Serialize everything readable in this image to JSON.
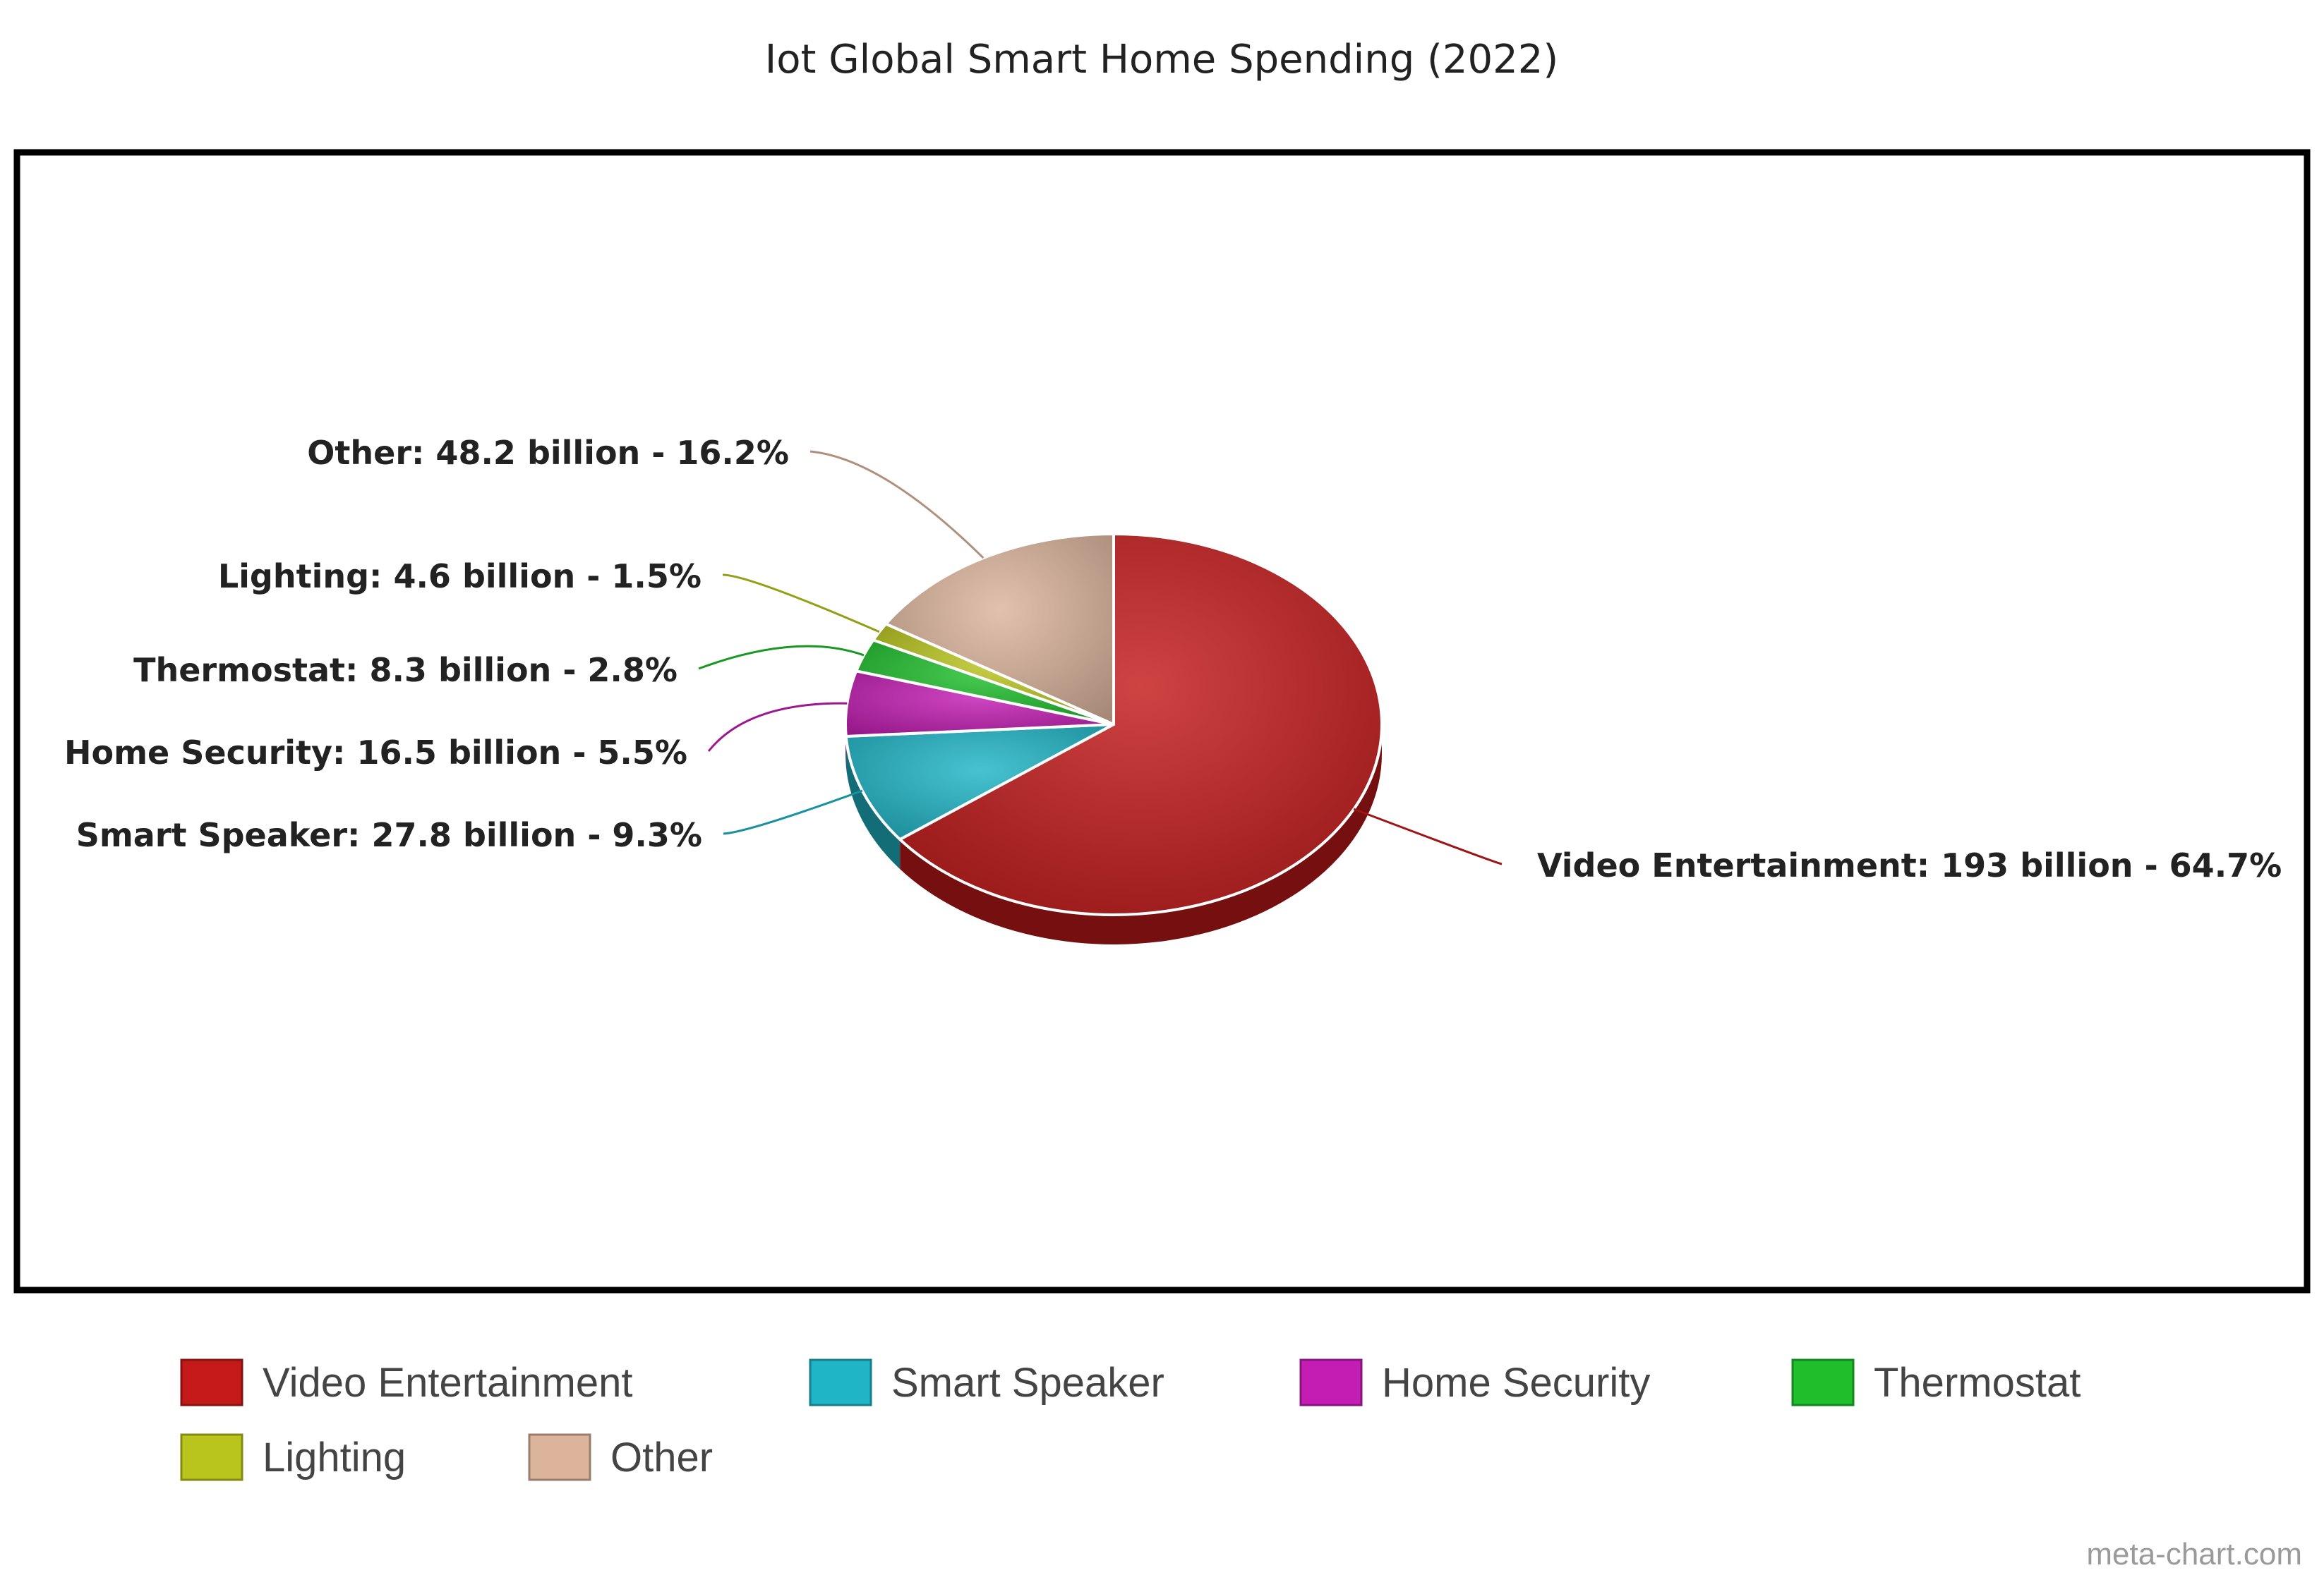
{
  "chart_data": {
    "type": "pie",
    "title": "Iot Global Smart Home Spending (2022)",
    "slices": [
      {
        "label": "Video Entertainment",
        "value": 193,
        "percent": 64.7,
        "data_label": "Video Entertainment: 193 billion - 64.7%",
        "color": "#c41a1a"
      },
      {
        "label": "Smart Speaker",
        "value": 27.8,
        "percent": 9.3,
        "data_label": "Smart Speaker: 27.8 billion - 9.3%",
        "color": "#1fb5c6"
      },
      {
        "label": "Home Security",
        "value": 16.5,
        "percent": 5.5,
        "data_label": "Home Security: 16.5 billion - 5.5%",
        "color": "#c41db4"
      },
      {
        "label": "Thermostat",
        "value": 8.3,
        "percent": 2.8,
        "data_label": "Thermostat: 8.3 billion - 2.8%",
        "color": "#1fbf2c"
      },
      {
        "label": "Lighting",
        "value": 4.6,
        "percent": 1.5,
        "data_label": "Lighting: 4.6 billion - 1.5%",
        "color": "#b9c51c"
      },
      {
        "label": "Other",
        "value": 48.2,
        "percent": 16.2,
        "data_label": "Other: 48.2 billion - 16.2%",
        "color": "#dcb49c"
      }
    ],
    "legend": {
      "placement": "bottom",
      "entries": [
        "Video Entertainment",
        "Smart Speaker",
        "Home Security",
        "Thermostat",
        "Lighting",
        "Other"
      ]
    },
    "watermark": "meta-chart.com"
  }
}
